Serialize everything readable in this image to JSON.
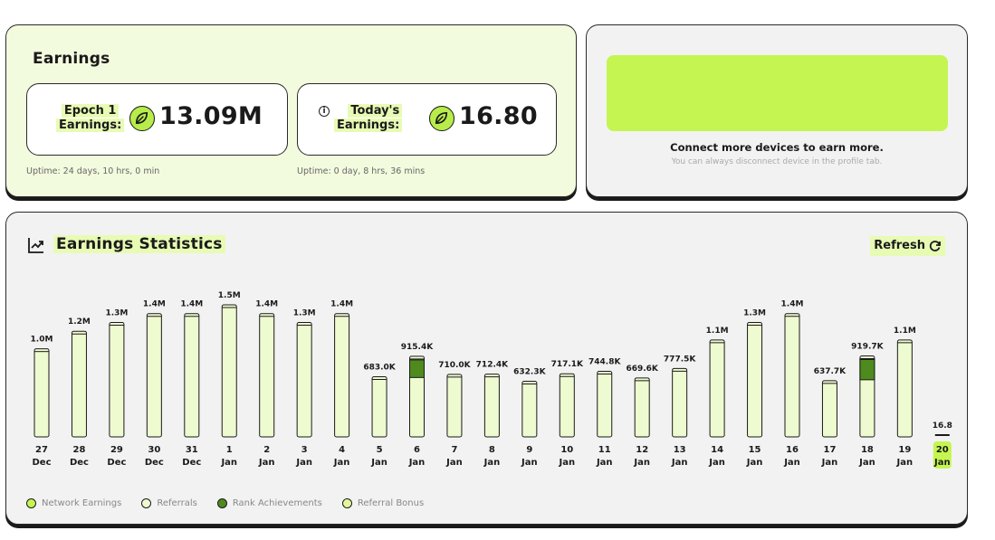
{
  "earnings": {
    "title": "Earnings",
    "epoch": {
      "label_line1": "Epoch 1",
      "label_line2": "Earnings:",
      "value": "13.09M",
      "uptime": "Uptime: 24 days, 10 hrs, 0 min"
    },
    "today": {
      "label_line1": "Today's",
      "label_line2": "Earnings:",
      "value": "16.80",
      "uptime": "Uptime: 0 day, 8 hrs, 36 mins"
    }
  },
  "connect": {
    "message": "Connect more devices to earn more.",
    "sub_message": "You can always disconnect device in the profile tab."
  },
  "stats": {
    "title": "Earnings Statistics",
    "refresh_label": "Refresh"
  },
  "colors": {
    "network": "#c4f551",
    "referrals": "#eefad0",
    "rank": "#4f8a1e",
    "referral_bonus": "#e4f79a",
    "highlight": "#c4f551"
  },
  "chart_data": {
    "type": "bar",
    "categories": [
      [
        "27",
        "Dec"
      ],
      [
        "28",
        "Dec"
      ],
      [
        "29",
        "Dec"
      ],
      [
        "30",
        "Dec"
      ],
      [
        "31",
        "Dec"
      ],
      [
        "1",
        "Jan"
      ],
      [
        "2",
        "Jan"
      ],
      [
        "3",
        "Jan"
      ],
      [
        "4",
        "Jan"
      ],
      [
        "5",
        "Jan"
      ],
      [
        "6",
        "Jan"
      ],
      [
        "7",
        "Jan"
      ],
      [
        "8",
        "Jan"
      ],
      [
        "9",
        "Jan"
      ],
      [
        "10",
        "Jan"
      ],
      [
        "11",
        "Jan"
      ],
      [
        "12",
        "Jan"
      ],
      [
        "13",
        "Jan"
      ],
      [
        "14",
        "Jan"
      ],
      [
        "15",
        "Jan"
      ],
      [
        "16",
        "Jan"
      ],
      [
        "17",
        "Jan"
      ],
      [
        "18",
        "Jan"
      ],
      [
        "19",
        "Jan"
      ],
      [
        "20",
        "Jan"
      ]
    ],
    "values": [
      1000000,
      1200000,
      1300000,
      1400000,
      1400000,
      1500000,
      1400000,
      1300000,
      1400000,
      683000,
      915400,
      710000,
      712400,
      632300,
      717100,
      744800,
      669600,
      777500,
      1100000,
      1300000,
      1400000,
      637700,
      919700,
      1100000,
      16.8
    ],
    "value_labels": [
      "1.0M",
      "1.2M",
      "1.3M",
      "1.4M",
      "1.4M",
      "1.5M",
      "1.4M",
      "1.3M",
      "1.4M",
      "683.0K",
      "915.4K",
      "710.0K",
      "712.4K",
      "632.3K",
      "717.1K",
      "744.8K",
      "669.6K",
      "777.5K",
      "1.1M",
      "1.3M",
      "1.4M",
      "637.7K",
      "919.7K",
      "1.1M",
      "16.8"
    ],
    "rank_achievement_values": [
      0,
      0,
      0,
      0,
      0,
      0,
      0,
      0,
      0,
      0,
      200000,
      0,
      0,
      0,
      0,
      0,
      0,
      0,
      0,
      0,
      0,
      0,
      230000,
      0,
      0
    ],
    "highlighted_index": 24,
    "ylim": [
      0,
      1500000
    ],
    "legend": [
      "Network Earnings",
      "Referrals",
      "Rank Achievements",
      "Referral Bonus"
    ],
    "legend_position": "bottom-left"
  }
}
